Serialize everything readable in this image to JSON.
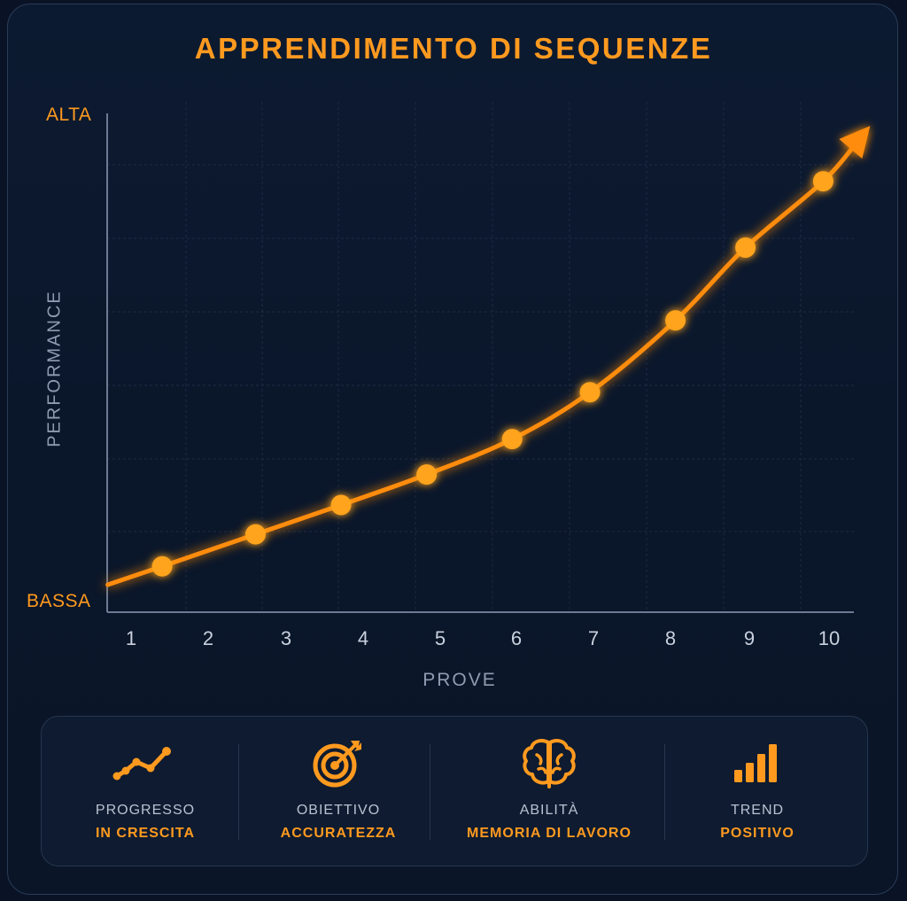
{
  "chart_data": {
    "type": "line",
    "title": "APPRENDIMENTO DI SEQUENZE",
    "xlabel": "PROVE",
    "ylabel": "PERFORMANCE",
    "x_ticks": [
      "1",
      "2",
      "3",
      "4",
      "5",
      "6",
      "7",
      "8",
      "9",
      "10"
    ],
    "y_ticks": [
      "BASSA",
      "ALTA"
    ],
    "ylim": [
      0,
      100
    ],
    "points": [
      {
        "x": 1.4,
        "y": 9.2
      },
      {
        "x": 2.6,
        "y": 15.6
      },
      {
        "x": 3.7,
        "y": 21.5
      },
      {
        "x": 4.8,
        "y": 27.6
      },
      {
        "x": 5.9,
        "y": 34.7
      },
      {
        "x": 6.9,
        "y": 44.1
      },
      {
        "x": 8.0,
        "y": 58.5
      },
      {
        "x": 8.9,
        "y": 73.1
      },
      {
        "x": 9.9,
        "y": 86.4
      }
    ],
    "trend_start": {
      "x": 0.7,
      "y": 5.5
    },
    "trend_end": {
      "x": 10.4,
      "y": 95.6
    },
    "grid": true,
    "line_color": "#ff8c0f",
    "point_color": "#ffa41e"
  },
  "summary": [
    {
      "icon": "line-trend-icon",
      "line1": "PROGRESSO",
      "line2": "IN CRESCITA"
    },
    {
      "icon": "target-icon",
      "line1": "OBIETTIVO",
      "line2": "ACCURATEZZA"
    },
    {
      "icon": "brain-icon",
      "line1": "ABILITÀ",
      "line2": "MEMORIA DI LAVORO"
    },
    {
      "icon": "bar-chart-icon",
      "line1": "TREND",
      "line2": "POSITIVO"
    }
  ],
  "colors": {
    "accent": "#ff9a1f",
    "background": "#0a1629",
    "muted_text": "#8f9bb0"
  }
}
